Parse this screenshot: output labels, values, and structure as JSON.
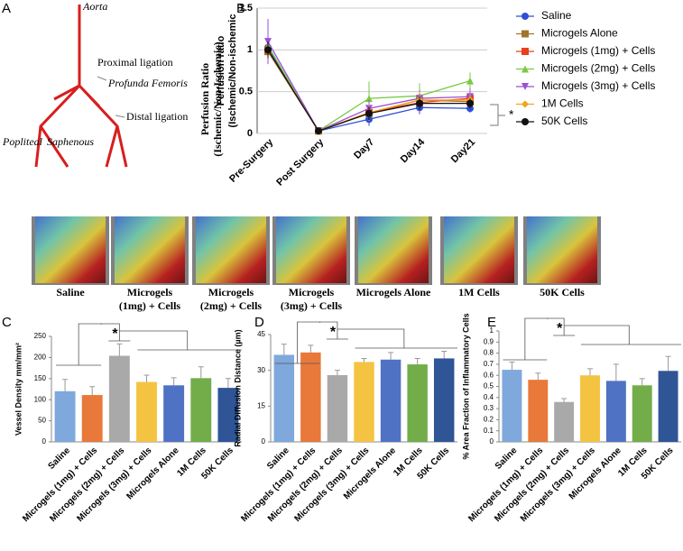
{
  "panels": [
    "A",
    "B",
    "C",
    "D",
    "E"
  ],
  "diagram": {
    "labels": [
      "Aorta",
      "Proximal ligation",
      "Profunda Femoris",
      "Distal ligation",
      "Popliteal",
      "Saphenous"
    ]
  },
  "images": {
    "captions": [
      [
        "Saline"
      ],
      [
        "Microgels",
        "(1mg) + Cells"
      ],
      [
        "Microgels",
        "(2mg) + Cells"
      ],
      [
        "Microgels",
        "(3mg) + Cells"
      ],
      [
        "Microgels Alone"
      ],
      [
        "1M Cells"
      ],
      [
        "50K Cells"
      ]
    ]
  },
  "chart_data": [
    {
      "type": "line",
      "outer_ylabel": [
        "Perfusion Ratio",
        "(Ischemic/Non-Ischemic)"
      ],
      "ylabel": [
        "Perfusion ratio",
        "(Ischemic/Non-ischemic"
      ],
      "categories": [
        "Pre-Surgery",
        "Post Surgery",
        "Day7",
        "Day14",
        "Day21"
      ],
      "ylim": [
        0,
        1.5
      ],
      "yticks": [
        0,
        0.5,
        1,
        1.5
      ],
      "annotation": "*",
      "series": [
        {
          "name": "Saline",
          "color": "#2d4fd8",
          "marker": "circle",
          "values": [
            1.03,
            0.03,
            0.17,
            0.31,
            0.3
          ],
          "errors": [
            0.12,
            0.02,
            0.08,
            0.08,
            0.05
          ]
        },
        {
          "name": "Microgels Alone",
          "color": "#a0742f",
          "marker": "square",
          "values": [
            0.98,
            0.03,
            0.24,
            0.4,
            0.38
          ],
          "errors": [
            0.08,
            0.02,
            0.08,
            0.08,
            0.08
          ]
        },
        {
          "name": "Microgels (1mg) + Cells",
          "color": "#e8401c",
          "marker": "square",
          "values": [
            1.0,
            0.03,
            0.25,
            0.37,
            0.42
          ],
          "errors": [
            0.1,
            0.02,
            0.1,
            0.1,
            0.08
          ]
        },
        {
          "name": "Microgels (2mg) + Cells",
          "color": "#7ac943",
          "marker": "triangle",
          "values": [
            1.05,
            0.03,
            0.42,
            0.45,
            0.63
          ],
          "errors": [
            0.15,
            0.02,
            0.2,
            0.15,
            0.1
          ]
        },
        {
          "name": "Microgels (3mg) + Cells",
          "color": "#9b4fd8",
          "marker": "triangle-down",
          "values": [
            1.1,
            0.03,
            0.3,
            0.42,
            0.44
          ],
          "errors": [
            0.27,
            0.02,
            0.1,
            0.1,
            0.1
          ]
        },
        {
          "name": "1M Cells",
          "color": "#f2a21b",
          "marker": "diamond",
          "values": [
            1.0,
            0.03,
            0.25,
            0.4,
            0.4
          ],
          "errors": [
            0.1,
            0.02,
            0.1,
            0.1,
            0.08
          ]
        },
        {
          "name": "50K Cells",
          "color": "#111111",
          "marker": "circle",
          "values": [
            1.0,
            0.03,
            0.24,
            0.36,
            0.36
          ],
          "errors": [
            0.1,
            0.02,
            0.08,
            0.08,
            0.06
          ]
        }
      ]
    },
    {
      "type": "bar",
      "ylabel": "Vessel Density mm/mm²",
      "ylim": [
        0,
        250
      ],
      "yticks": [
        0,
        50,
        100,
        150,
        200,
        250
      ],
      "annotation": "*",
      "categories": [
        "Saline",
        "Microgels (1mg) + Cells",
        "Microgels (2mg) + Cells",
        "Microgels (3mg) + Cells",
        "Microgels Alone",
        "1M Cells",
        "50K Cells"
      ],
      "colors": [
        "#7fa8dc",
        "#e8793a",
        "#a9a9a9",
        "#f5c342",
        "#4f72c4",
        "#72ad4a",
        "#2f5597"
      ],
      "values": [
        120,
        111,
        204,
        142,
        134,
        151,
        128
      ],
      "errors": [
        28,
        20,
        28,
        16,
        18,
        27,
        22
      ]
    },
    {
      "type": "bar",
      "ylabel": "Radial Diffusion Distance (µm)",
      "ylim": [
        0,
        45
      ],
      "yticks": [
        0,
        15,
        30,
        45
      ],
      "annotation": "*",
      "categories": [
        "Saline",
        "Microgels (1mg) + Cells",
        "Microgels (2mg) + Cells",
        "Microgels (3mg) + Cells",
        "Microgels Alone",
        "1M Cells",
        "50K Cells"
      ],
      "colors": [
        "#7fa8dc",
        "#e8793a",
        "#a9a9a9",
        "#f5c342",
        "#4f72c4",
        "#72ad4a",
        "#2f5597"
      ],
      "values": [
        36.5,
        37.5,
        28,
        33.5,
        34.5,
        32.5,
        35
      ],
      "errors": [
        4.5,
        3,
        2,
        1.5,
        3,
        2.5,
        3
      ]
    },
    {
      "type": "bar",
      "ylabel": "% Area Fraction of Inflammatory Cells",
      "ylim": [
        0,
        1
      ],
      "yticks": [
        0,
        0.1,
        0.2,
        0.3,
        0.4,
        0.5,
        0.6,
        0.7,
        0.8,
        0.9,
        1
      ],
      "annotation": "*",
      "categories": [
        "Saline",
        "Microgels (1mg) + Cells",
        "Microgels (2mg) + Cells",
        "Microgels (3mg) + Cells",
        "Microgels Alone",
        "1M Cells",
        "50K Cells"
      ],
      "colors": [
        "#7fa8dc",
        "#e8793a",
        "#a9a9a9",
        "#f5c342",
        "#4f72c4",
        "#72ad4a",
        "#2f5597"
      ],
      "values": [
        0.65,
        0.56,
        0.36,
        0.6,
        0.55,
        0.51,
        0.64
      ],
      "errors": [
        0.07,
        0.06,
        0.03,
        0.06,
        0.15,
        0.06,
        0.13
      ]
    }
  ]
}
